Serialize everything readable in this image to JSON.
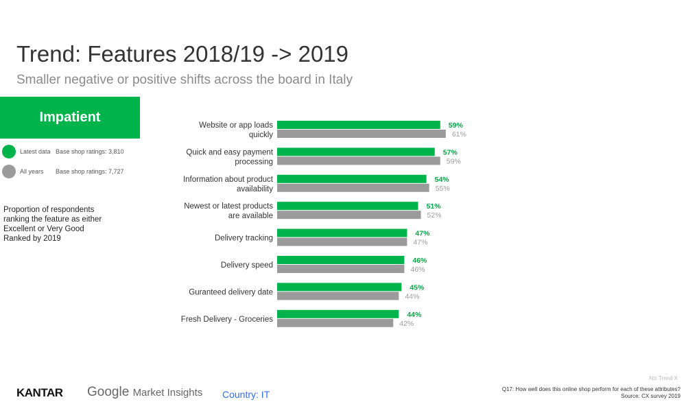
{
  "header": {
    "title": "Trend: Features 2018/19 -> 2019",
    "subtitle": "Smaller negative or positive shifts across the board in Italy"
  },
  "segment": "Impatient",
  "legend": [
    {
      "label": "Latest data",
      "base": "Base shop ratings:  3,810",
      "color": "#00b34a"
    },
    {
      "label": "All years",
      "base": "Base shop ratings: 7,727",
      "color": "#9b9b9b"
    }
  ],
  "note": [
    "Proportion of respondents",
    "ranking the feature as either",
    "Excellent or Very Good",
    "Ranked by 2019"
  ],
  "chart_data": {
    "type": "bar",
    "orientation": "horizontal",
    "xlim": [
      0,
      100
    ],
    "categories": [
      [
        "Website or app loads",
        "quickly"
      ],
      [
        "Quick and easy payment",
        "processing"
      ],
      [
        "Information about product",
        "availability"
      ],
      [
        "Newest or latest products",
        "are available"
      ],
      [
        "Delivery tracking"
      ],
      [
        "Delivery speed"
      ],
      [
        "Guranteed delivery date"
      ],
      [
        "Fresh Delivery - Groceries"
      ]
    ],
    "series": [
      {
        "name": "Latest data",
        "color": "#00b34a",
        "values": [
          59,
          57,
          54,
          51,
          47,
          46,
          45,
          44
        ]
      },
      {
        "name": "All years",
        "color": "#9b9b9b",
        "values": [
          61,
          59,
          55,
          52,
          47,
          46,
          44,
          42
        ]
      }
    ]
  },
  "footer": {
    "kantar": "KANTAR",
    "google": "Google",
    "market_insights": "Market Insights",
    "country": "Country: IT",
    "attr": "Attr Trend X",
    "question": "Q17: How well does this online shop perform for each of these attributes?",
    "source": "Source: CX survey 2019"
  }
}
